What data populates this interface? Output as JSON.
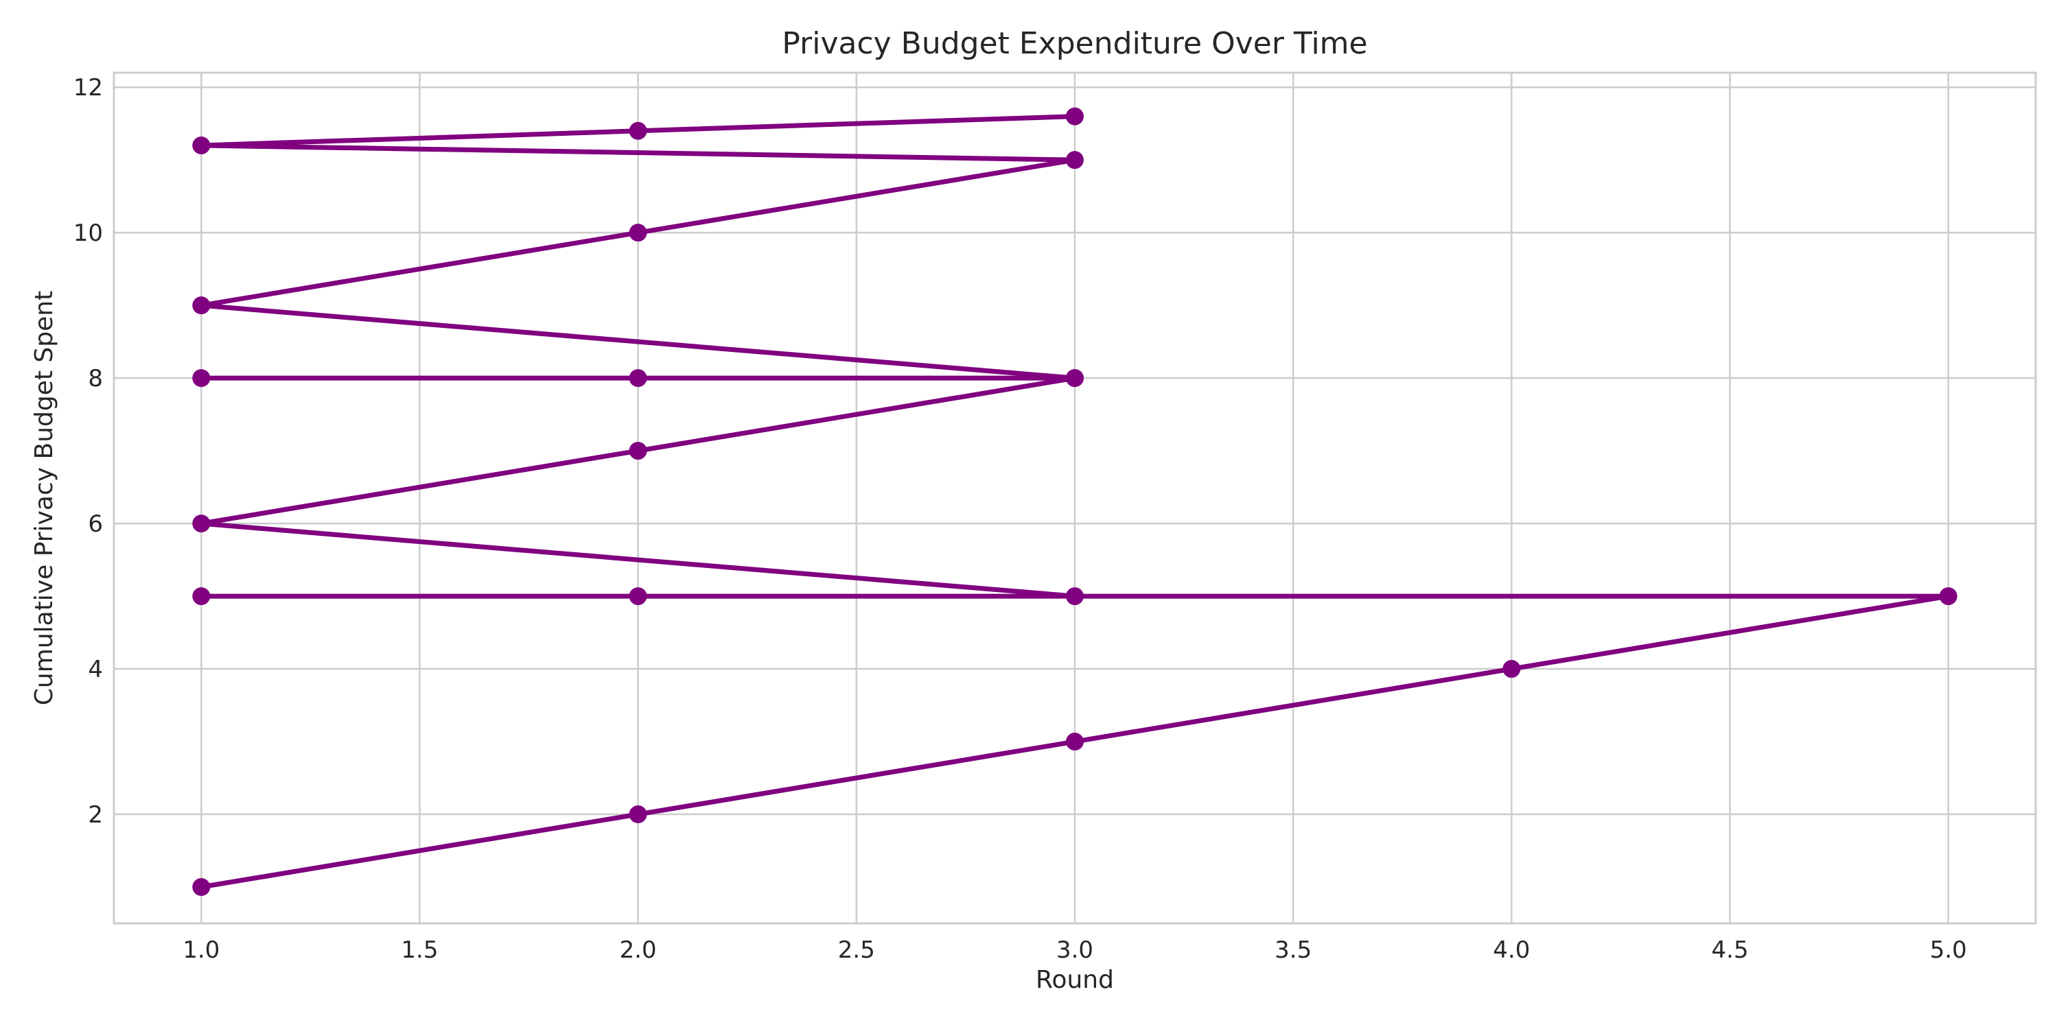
{
  "chart_data": {
    "type": "line",
    "title": "Privacy Budget Expenditure Over Time",
    "xlabel": "Round",
    "ylabel": "Cumulative Privacy Budget Spent",
    "xlim": [
      0.8,
      5.2
    ],
    "ylim": [
      0.5,
      12.2
    ],
    "xticks": [
      1.0,
      1.5,
      2.0,
      2.5,
      3.0,
      3.5,
      4.0,
      4.5,
      5.0
    ],
    "xtick_labels": [
      "1.0",
      "1.5",
      "2.0",
      "2.5",
      "3.0",
      "3.5",
      "4.0",
      "4.5",
      "5.0"
    ],
    "yticks": [
      2,
      4,
      6,
      8,
      10,
      12
    ],
    "ytick_labels": [
      "2",
      "4",
      "6",
      "8",
      "10",
      "12"
    ],
    "grid": true,
    "series": [
      {
        "color": "#800080",
        "marker": "circle",
        "points": [
          [
            1,
            1
          ],
          [
            2,
            2
          ],
          [
            3,
            3
          ],
          [
            4,
            4
          ],
          [
            5,
            5
          ],
          [
            1,
            5
          ],
          [
            2,
            5
          ],
          [
            3,
            5
          ],
          [
            1,
            6
          ],
          [
            2,
            7
          ],
          [
            3,
            8
          ],
          [
            1,
            8
          ],
          [
            2,
            8
          ],
          [
            3,
            8
          ],
          [
            1,
            9
          ],
          [
            2,
            10
          ],
          [
            3,
            11
          ],
          [
            1,
            11.2
          ],
          [
            2,
            11.4
          ],
          [
            3,
            11.6
          ]
        ]
      }
    ]
  }
}
